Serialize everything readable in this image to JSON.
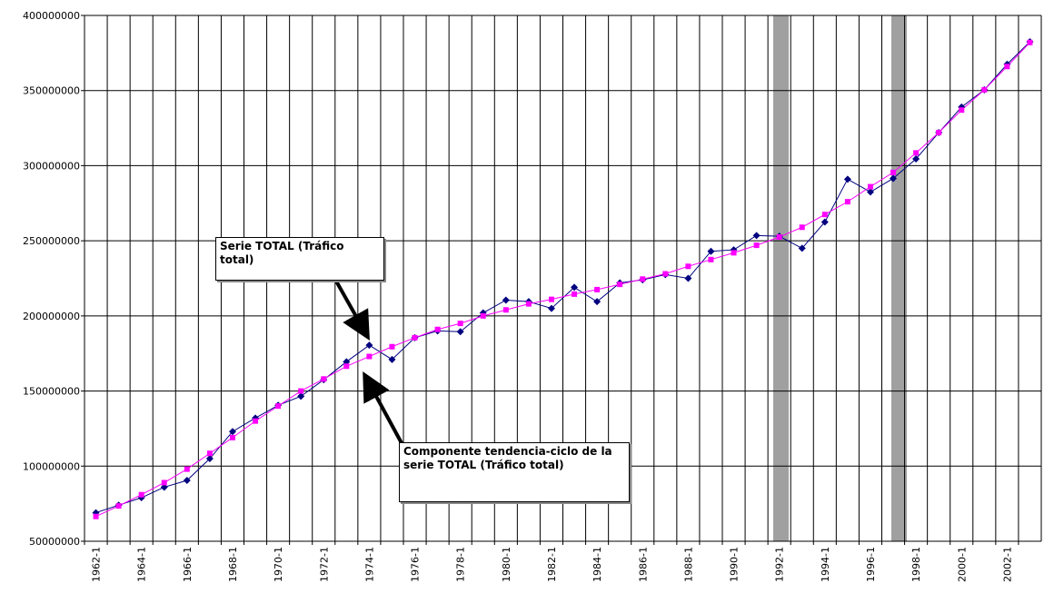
{
  "chart_data": {
    "type": "line",
    "categories": [
      "1962-1",
      null,
      "1964-1",
      null,
      "1966-1",
      null,
      "1968-1",
      null,
      "1970-1",
      null,
      "1972-1",
      null,
      "1974-1",
      null,
      "1976-1",
      null,
      "1978-1",
      null,
      "1980-1",
      null,
      "1982-1",
      null,
      "1984-1",
      null,
      "1986-1",
      null,
      "1988-1",
      null,
      "1990-1",
      null,
      "1992-1",
      null,
      "1994-1",
      null,
      "1996-1",
      null,
      "1998-1",
      null,
      "2000-1",
      null,
      "2002-1",
      null
    ],
    "series": [
      {
        "color": "#000080",
        "marker": "diamond",
        "values": [
          69000000,
          74000000,
          79000000,
          86000000,
          90500000,
          105000000,
          123000000,
          132000000,
          140500000,
          146500000,
          157500000,
          169500000,
          180500000,
          171000000,
          185500000,
          190000000,
          189500000,
          202000000,
          210500000,
          209500000,
          205000000,
          219000000,
          209500000,
          222000000,
          224000000,
          227500000,
          225000000,
          243000000,
          244000000,
          253500000,
          253000000,
          245000000,
          262500000,
          291000000,
          282500000,
          291500000,
          304500000,
          322000000,
          339000000,
          350500000,
          367500000,
          382500000
        ]
      },
      {
        "color": "#ff00ff",
        "marker": "square",
        "values": [
          66500000,
          73500000,
          81000000,
          89000000,
          98000000,
          108500000,
          119000000,
          130000000,
          140000000,
          150000000,
          158000000,
          166500000,
          173000000,
          179500000,
          185500000,
          191000000,
          195000000,
          200000000,
          204000000,
          208000000,
          211000000,
          214500000,
          217500000,
          221000000,
          224500000,
          228000000,
          233000000,
          237500000,
          242000000,
          247000000,
          252500000,
          259000000,
          267500000,
          276000000,
          286000000,
          295500000,
          308500000,
          322000000,
          337000000,
          350500000,
          366000000,
          382000000
        ]
      }
    ],
    "ylim": [
      50000000,
      400000000
    ],
    "yticks": [
      50000000,
      100000000,
      150000000,
      200000000,
      250000000,
      300000000,
      350000000,
      400000000
    ],
    "grid": true,
    "annotations": [
      "Serie TOTAL (Tráfico total)",
      "Componente tendencia-ciclo de la serie TOTAL (Tráfico total)"
    ]
  }
}
